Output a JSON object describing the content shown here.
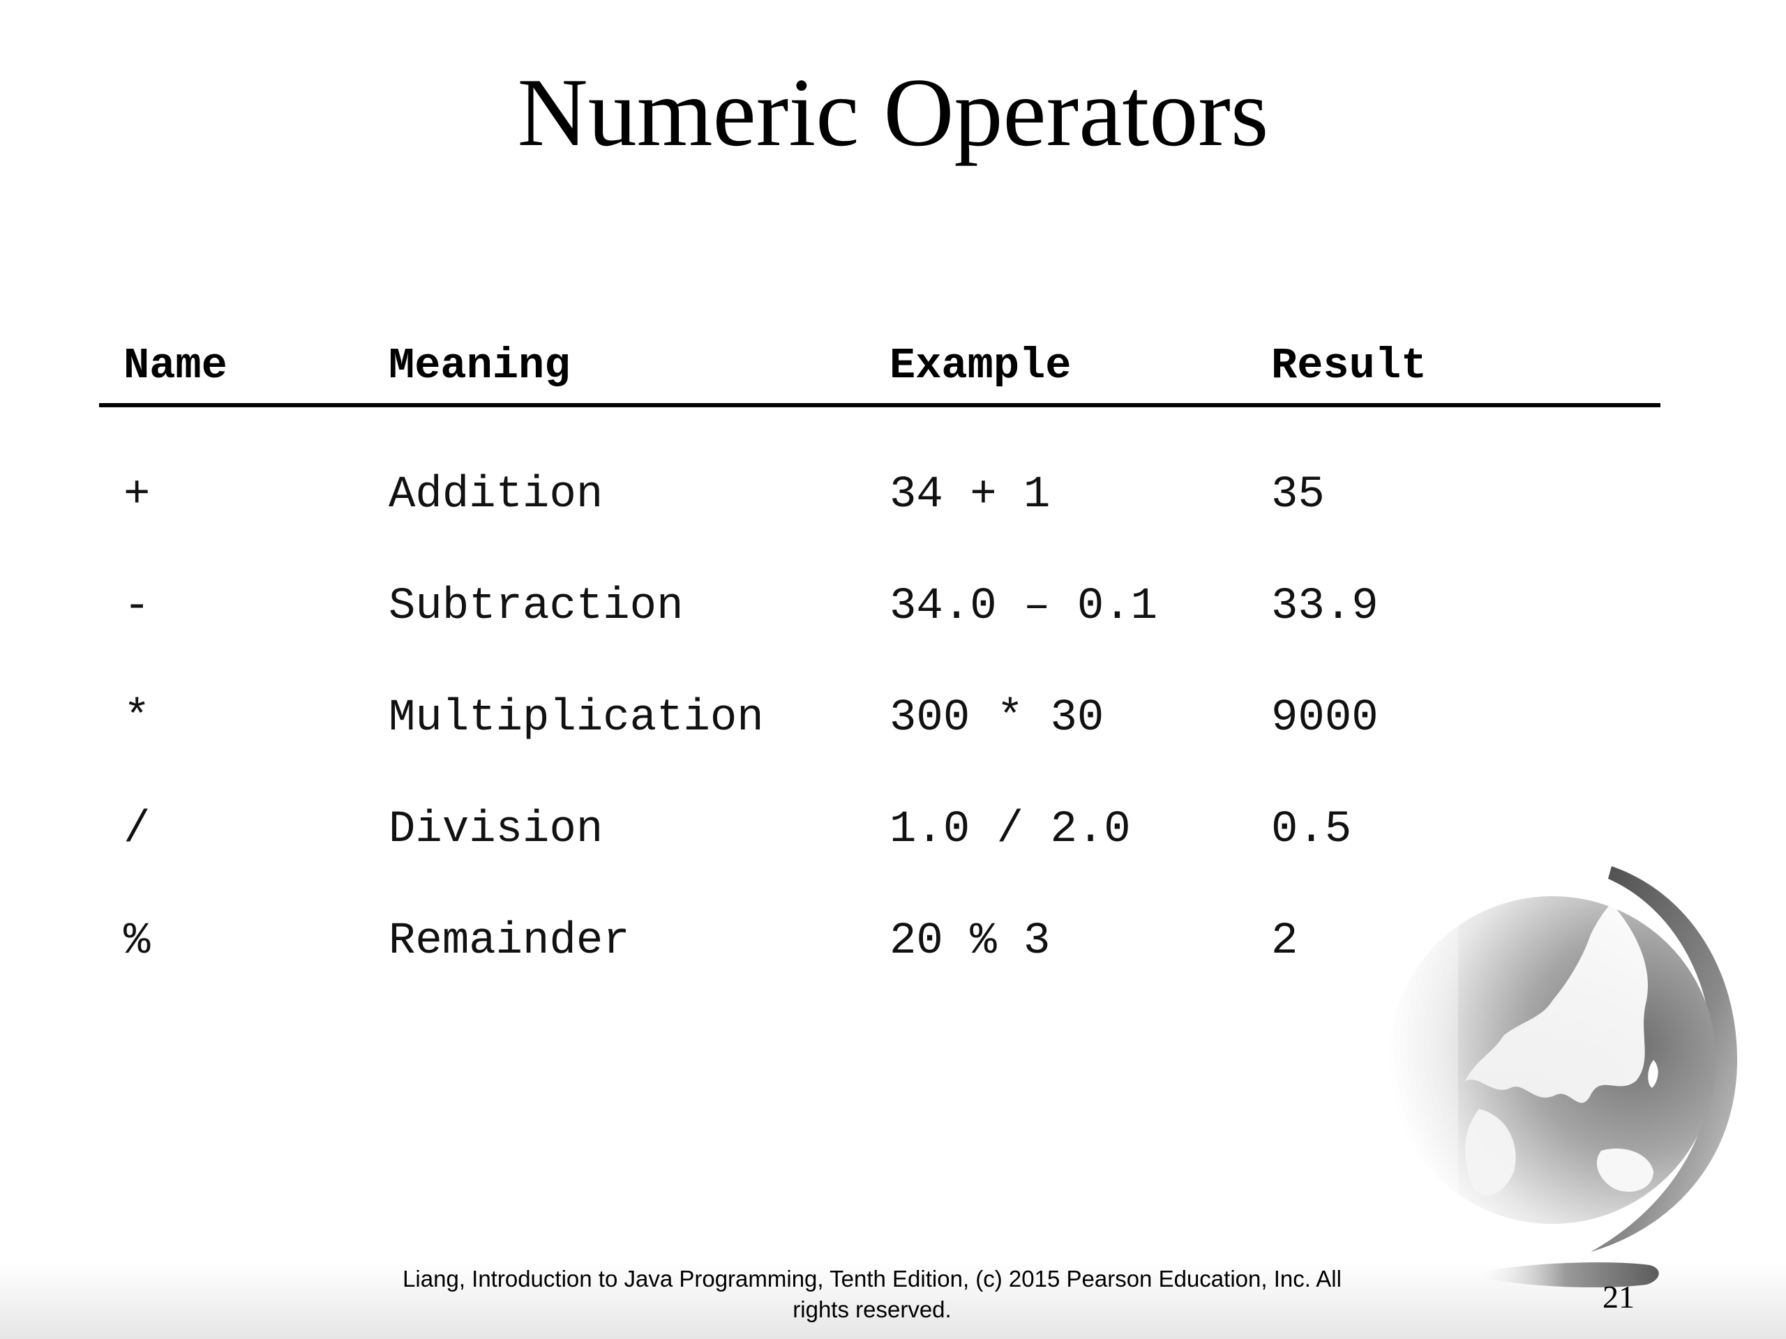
{
  "slide": {
    "title": "Numeric Operators",
    "table": {
      "headers": {
        "name": "Name",
        "meaning": "Meaning",
        "example": "Example",
        "result": "Result"
      },
      "rows": [
        {
          "name": "+",
          "meaning": "Addition",
          "example": "34 + 1",
          "result": "35"
        },
        {
          "name": "-",
          "meaning": "Subtraction",
          "example": "34.0 – 0.1",
          "result": "33.9"
        },
        {
          "name": "*",
          "meaning": "Multiplication",
          "example": "300 * 30",
          "result": "9000"
        },
        {
          "name": "/",
          "meaning": "Division",
          "example": "1.0 / 2.0",
          "result": "0.5"
        },
        {
          "name": "%",
          "meaning": "Remainder",
          "example": "20 % 3",
          "result": "2"
        }
      ]
    },
    "footer": {
      "line1": "Liang, Introduction to Java Programming, Tenth Edition, (c) 2015 Pearson Education, Inc. All",
      "line2": "rights reserved."
    },
    "page_number": "21",
    "decoration_icon": "globe-icon"
  }
}
